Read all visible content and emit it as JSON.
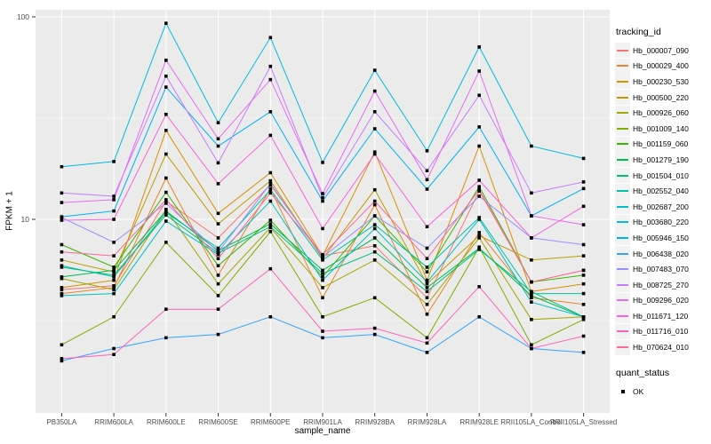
{
  "chart_data": {
    "type": "line",
    "title": "",
    "xlabel": "sample_name",
    "ylabel": "FPKM + 1",
    "y_scale": "log10",
    "ylim": [
      1.11,
      108
    ],
    "y_major_ticks": [
      10,
      100
    ],
    "y_minor_ticks": [
      3.162,
      31.62
    ],
    "grid": true,
    "panel_bg": "#EBEBEB",
    "grid_color": "#FFFFFF",
    "axis_text_color": "#4D4D4D",
    "point_marker": "square",
    "point_color": "#000000",
    "legend_position": "right",
    "categories": [
      "PB350LA",
      "RRIM600LA",
      "RRIM600LE",
      "RRIM600SE",
      "RRIM600PE",
      "RRIM901LA",
      "RRIM928BA",
      "RRIM928LA",
      "RRIM928LE",
      "RRII105LA_Control",
      "RRII105LA_Stressed"
    ],
    "series": [
      {
        "name": "Hb_000007_090",
        "color": "#F8766D",
        "values": [
          4.5,
          4.7,
          12.3,
          8.1,
          14.8,
          6.6,
          7.4,
          4.1,
          13.8,
          4.9,
          5.6
        ]
      },
      {
        "name": "Hb_000029_400",
        "color": "#E88526",
        "values": [
          4.3,
          4.6,
          16.0,
          5.3,
          14.2,
          4.1,
          11.8,
          3.4,
          8.6,
          4.1,
          3.8
        ]
      },
      {
        "name": "Hb_000230_530",
        "color": "#D89000",
        "values": [
          4.6,
          5.0,
          27.5,
          10.7,
          17.0,
          6.6,
          21.5,
          5.0,
          23.0,
          4.4,
          4.8
        ]
      },
      {
        "name": "Hb_000500_220",
        "color": "#C09B00",
        "values": [
          6.3,
          5.5,
          21.0,
          9.5,
          15.5,
          6.4,
          14.0,
          4.8,
          8.3,
          6.3,
          6.6
        ]
      },
      {
        "name": "Hb_000926_060",
        "color": "#A3A500",
        "values": [
          5.1,
          4.5,
          11.2,
          4.8,
          9.1,
          4.6,
          6.3,
          3.8,
          8.1,
          3.2,
          3.3
        ]
      },
      {
        "name": "Hb_001009_140",
        "color": "#7CAE00",
        "values": [
          2.4,
          3.3,
          7.7,
          4.2,
          8.7,
          3.3,
          4.1,
          2.6,
          7.3,
          2.4,
          3.2
        ]
      },
      {
        "name": "Hb_001159_060",
        "color": "#39B600",
        "values": [
          7.5,
          5.8,
          13.6,
          5.9,
          9.9,
          5.2,
          10.4,
          5.5,
          14.5,
          4.9,
          5.3
        ]
      },
      {
        "name": "Hb_001279_190",
        "color": "#00BB4E",
        "values": [
          5.2,
          5.6,
          11.0,
          7.0,
          9.5,
          5.6,
          8.1,
          4.6,
          7.2,
          4.2,
          3.3
        ]
      },
      {
        "name": "Hb_001504_010",
        "color": "#00BF7D",
        "values": [
          5.8,
          5.3,
          10.5,
          6.8,
          9.2,
          5.4,
          6.9,
          4.4,
          7.1,
          4.4,
          3.3
        ]
      },
      {
        "name": "Hb_002552_040",
        "color": "#00C1A3",
        "values": [
          5.9,
          5.2,
          10.8,
          7.2,
          14.0,
          6.3,
          9.4,
          5.8,
          10.2,
          4.3,
          4.3
        ]
      },
      {
        "name": "Hb_002687_200",
        "color": "#00BFC4",
        "values": [
          4.2,
          4.3,
          9.8,
          6.7,
          12.3,
          5.0,
          9.0,
          4.9,
          10.0,
          3.9,
          3.3
        ]
      },
      {
        "name": "Hb_003680_220",
        "color": "#00BAE0",
        "values": [
          18.2,
          19.3,
          93.0,
          30.0,
          79.0,
          19.1,
          54.5,
          21.8,
          71.0,
          23.0,
          20.0
        ]
      },
      {
        "name": "Hb_005946_150",
        "color": "#00B0F6",
        "values": [
          10.3,
          11.0,
          45.0,
          23.0,
          34.0,
          12.3,
          28.0,
          14.1,
          28.6,
          10.4,
          14.2
        ]
      },
      {
        "name": "Hb_006438_020",
        "color": "#35A2FF",
        "values": [
          2.0,
          2.3,
          2.6,
          2.7,
          3.3,
          2.6,
          2.7,
          2.2,
          3.3,
          2.3,
          2.2
        ]
      },
      {
        "name": "Hb_007483_070",
        "color": "#9590FF",
        "values": [
          10.2,
          7.7,
          12.0,
          6.9,
          15.0,
          6.5,
          10.4,
          7.2,
          13.0,
          8.1,
          7.5
        ]
      },
      {
        "name": "Hb_008725_270",
        "color": "#C77CFF",
        "values": [
          13.5,
          13.0,
          51.0,
          19.0,
          57.0,
          12.8,
          34.0,
          17.4,
          41.0,
          13.5,
          15.3
        ]
      },
      {
        "name": "Hb_009296_020",
        "color": "#E76BF3",
        "values": [
          12.1,
          12.5,
          61.0,
          25.0,
          49.0,
          13.4,
          43.0,
          15.7,
          54.0,
          10.4,
          9.4
        ]
      },
      {
        "name": "Hb_011671_120",
        "color": "#FA62DB",
        "values": [
          9.9,
          10.0,
          33.0,
          15.0,
          26.0,
          9.0,
          21.0,
          9.2,
          15.6,
          8.1,
          11.6
        ]
      },
      {
        "name": "Hb_011716_010",
        "color": "#FF62BC",
        "values": [
          2.05,
          2.15,
          3.6,
          3.6,
          5.7,
          2.8,
          2.9,
          2.45,
          4.65,
          2.3,
          2.65
        ]
      },
      {
        "name": "Hb_070624_010",
        "color": "#FF6A98",
        "values": [
          6.9,
          6.6,
          12.5,
          6.4,
          13.5,
          6.7,
          12.3,
          6.4,
          14.0,
          4.9,
          5.6
        ]
      }
    ],
    "legend": {
      "color_title": "tracking_id",
      "shape_title": "quant_status",
      "shape_items": [
        {
          "label": "OK",
          "marker": "black-square"
        }
      ]
    }
  }
}
